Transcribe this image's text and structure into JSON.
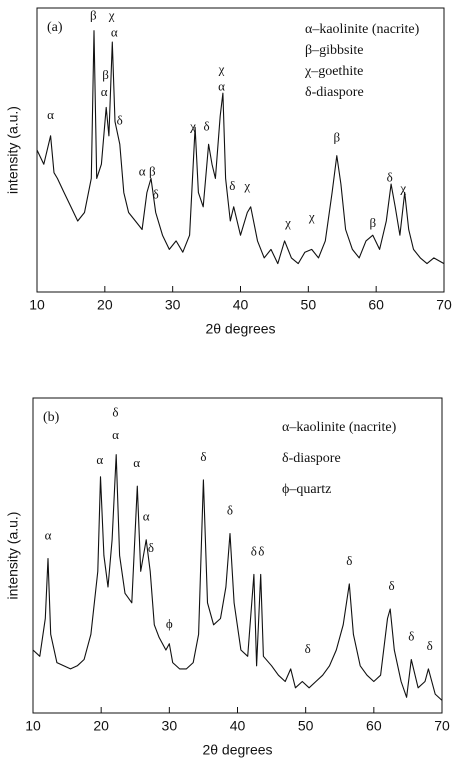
{
  "chart_data": [
    {
      "type": "line",
      "panel_label": "(a)",
      "x_label": "2θ degrees",
      "y_label": "intensity (a.u.)",
      "color": "#111111",
      "legend_text": [
        "α–kaolinite (nacrite)",
        "β–gibbsite",
        "χ–goethite",
        "δ-diaspore"
      ],
      "xlim": [
        10,
        70
      ],
      "ylim": [
        0,
        100
      ],
      "xticks": [
        10,
        20,
        30,
        40,
        50,
        60,
        70
      ],
      "x": [
        10,
        11,
        12,
        12.5,
        13,
        14,
        15,
        16,
        17,
        18,
        18.4,
        18.8,
        19.5,
        20.2,
        20.6,
        21.1,
        21.5,
        22.2,
        22.8,
        23.5,
        24.5,
        25.5,
        26.2,
        26.8,
        27.5,
        28.5,
        29.5,
        30.5,
        31.5,
        32.5,
        33.3,
        33.8,
        34.5,
        35.3,
        35.8,
        36.3,
        37,
        37.4,
        37.8,
        38.5,
        39,
        40,
        41,
        41.5,
        42.5,
        43.5,
        44.5,
        45.5,
        46.5,
        47.5,
        48.5,
        49.5,
        50.5,
        51.5,
        52.5,
        53.5,
        54.2,
        54.8,
        55.5,
        56.5,
        57.5,
        58.5,
        59.5,
        60.5,
        61.5,
        62.2,
        62.8,
        63.5,
        64.2,
        64.8,
        65.5,
        66.5,
        67.5,
        68.5,
        70
      ],
      "values": [
        50,
        45,
        55,
        42,
        40,
        35,
        30,
        25,
        28,
        40,
        92,
        40,
        45,
        65,
        55,
        88,
        60,
        52,
        35,
        28,
        25,
        22,
        35,
        40,
        28,
        20,
        15,
        18,
        14,
        20,
        58,
        35,
        30,
        52,
        45,
        40,
        62,
        70,
        40,
        25,
        30,
        20,
        28,
        30,
        18,
        12,
        15,
        10,
        18,
        12,
        10,
        14,
        15,
        12,
        18,
        35,
        48,
        38,
        22,
        15,
        12,
        18,
        20,
        15,
        25,
        38,
        30,
        20,
        35,
        22,
        15,
        12,
        10,
        12,
        10
      ],
      "annotations": [
        {
          "text": "α",
          "x": 12,
          "y": 62
        },
        {
          "text": "β",
          "x": 18.3,
          "y": 97
        },
        {
          "text": "χ",
          "x": 21,
          "y": 97
        },
        {
          "text": "α",
          "x": 21.4,
          "y": 91
        },
        {
          "text": "β",
          "x": 20.1,
          "y": 76
        },
        {
          "text": "α",
          "x": 19.9,
          "y": 70
        },
        {
          "text": "δ",
          "x": 22.2,
          "y": 60
        },
        {
          "text": "α",
          "x": 25.5,
          "y": 42
        },
        {
          "text": "β",
          "x": 27,
          "y": 42
        },
        {
          "text": "δ",
          "x": 27.5,
          "y": 34
        },
        {
          "text": "χ",
          "x": 33,
          "y": 58
        },
        {
          "text": "δ",
          "x": 35,
          "y": 58
        },
        {
          "text": "χ",
          "x": 37.2,
          "y": 78
        },
        {
          "text": "α",
          "x": 37.2,
          "y": 72
        },
        {
          "text": "δ",
          "x": 38.8,
          "y": 37
        },
        {
          "text": "χ",
          "x": 41,
          "y": 37
        },
        {
          "text": "χ",
          "x": 47,
          "y": 24
        },
        {
          "text": "χ",
          "x": 50.5,
          "y": 26
        },
        {
          "text": "β",
          "x": 54.2,
          "y": 54
        },
        {
          "text": "β",
          "x": 59.5,
          "y": 24
        },
        {
          "text": "δ",
          "x": 62,
          "y": 40
        },
        {
          "text": "χ",
          "x": 64,
          "y": 36
        }
      ]
    },
    {
      "type": "line",
      "panel_label": "(b)",
      "x_label": "2θ degrees",
      "y_label": "intensity (a.u.)",
      "color": "#111111",
      "legend_text": [
        "α–kaolinite (nacrite)",
        "δ-diaspore",
        "ϕ–quartz"
      ],
      "xlim": [
        10,
        70
      ],
      "ylim": [
        0,
        100
      ],
      "xticks": [
        10,
        20,
        30,
        40,
        50,
        60,
        70
      ],
      "x": [
        10,
        11,
        11.8,
        12.2,
        12.6,
        13.5,
        14.5,
        15.5,
        16.5,
        17.5,
        18.5,
        19.5,
        19.9,
        20.4,
        21,
        21.6,
        22.2,
        22.7,
        23.5,
        24.5,
        25.3,
        25.8,
        26.6,
        27.2,
        27.8,
        28.5,
        29.5,
        30,
        30.5,
        31.5,
        32.5,
        33.5,
        34.3,
        35,
        35.6,
        36.5,
        37.5,
        38.3,
        38.9,
        39.5,
        40.5,
        41.5,
        42.4,
        42.8,
        43.4,
        43.8,
        45,
        46,
        47,
        47.8,
        48.5,
        49.5,
        50.5,
        51.5,
        52.5,
        53.5,
        54.5,
        55.5,
        56.4,
        57,
        58,
        59,
        60,
        61,
        62,
        62.4,
        63,
        64,
        64.8,
        65.5,
        66.5,
        67.5,
        68,
        69,
        70
      ],
      "values": [
        20,
        18,
        30,
        49,
        25,
        16,
        15,
        14,
        15,
        17,
        25,
        45,
        75,
        50,
        40,
        55,
        82,
        50,
        38,
        35,
        72,
        45,
        55,
        45,
        28,
        24,
        20,
        22,
        16,
        14,
        14,
        16,
        25,
        74,
        35,
        28,
        30,
        40,
        57,
        35,
        20,
        18,
        44,
        15,
        44,
        18,
        15,
        12,
        10,
        14,
        8,
        10,
        8,
        10,
        12,
        15,
        20,
        28,
        41,
        25,
        15,
        12,
        10,
        12,
        30,
        33,
        20,
        10,
        5,
        17,
        8,
        10,
        14,
        6,
        4
      ],
      "annotations": [
        {
          "text": "α",
          "x": 12.2,
          "y": 56
        },
        {
          "text": "α",
          "x": 19.8,
          "y": 80
        },
        {
          "text": "δ",
          "x": 22.1,
          "y": 95
        },
        {
          "text": "α",
          "x": 22.1,
          "y": 88
        },
        {
          "text": "α",
          "x": 25.2,
          "y": 79
        },
        {
          "text": "α",
          "x": 26.6,
          "y": 62
        },
        {
          "text": "δ",
          "x": 27.3,
          "y": 52
        },
        {
          "text": "ϕ",
          "x": 30,
          "y": 28
        },
        {
          "text": "δ",
          "x": 35,
          "y": 81
        },
        {
          "text": "δ",
          "x": 38.9,
          "y": 64
        },
        {
          "text": "δ",
          "x": 42.4,
          "y": 51
        },
        {
          "text": "δ",
          "x": 43.5,
          "y": 51
        },
        {
          "text": "δ",
          "x": 50.3,
          "y": 20
        },
        {
          "text": "δ",
          "x": 56.4,
          "y": 48
        },
        {
          "text": "δ",
          "x": 62.6,
          "y": 40
        },
        {
          "text": "δ",
          "x": 65.5,
          "y": 24
        },
        {
          "text": "δ",
          "x": 68.2,
          "y": 21
        }
      ]
    }
  ]
}
